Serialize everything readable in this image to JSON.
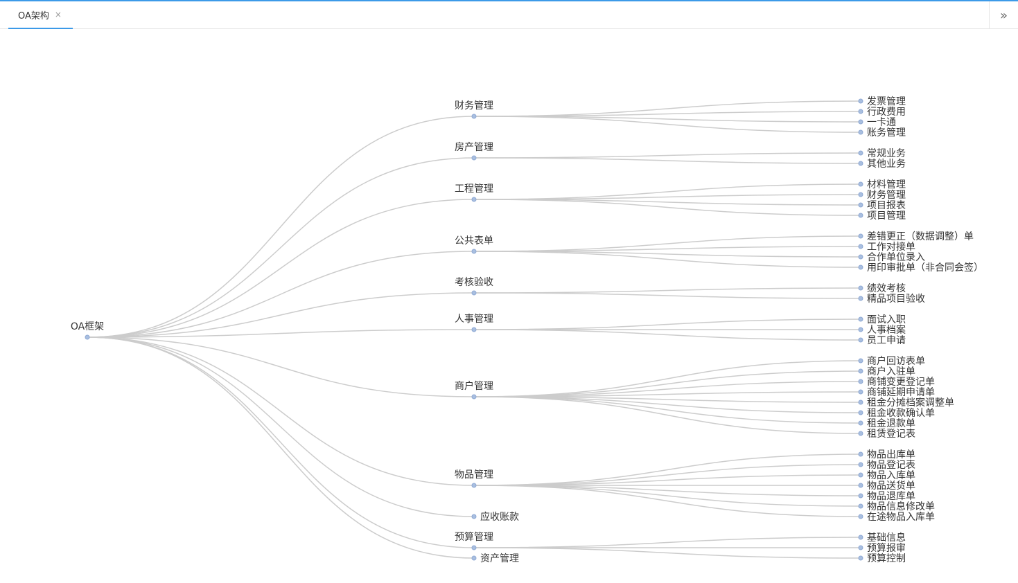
{
  "tabs": [
    {
      "label": "OA架构",
      "close": "×"
    }
  ],
  "toolbar": {
    "more_glyph": "»"
  },
  "tree": {
    "name": "OA框架",
    "children": [
      {
        "name": "财务管理",
        "children": [
          "发票管理",
          "行政费用",
          "一卡通",
          "账务管理"
        ]
      },
      {
        "name": "房产管理",
        "children": [
          "常规业务",
          "其他业务"
        ]
      },
      {
        "name": "工程管理",
        "children": [
          "材料管理",
          "财务管理",
          "项目报表",
          "项目管理"
        ]
      },
      {
        "name": "公共表单",
        "children": [
          "差错更正（数据调整）单",
          "工作对接单",
          "合作单位录入",
          "用印审批单（非合同会签）"
        ]
      },
      {
        "name": "考核验收",
        "children": [
          "绩效考核",
          "精品项目验收"
        ]
      },
      {
        "name": "人事管理",
        "children": [
          "面试入职",
          "人事档案",
          "员工申请"
        ]
      },
      {
        "name": "商户管理",
        "children": [
          "商户回访表单",
          "商户入驻单",
          "商铺变更登记单",
          "商铺延期申请单",
          "租金分摊档案调整单",
          "租金收款确认单",
          "租金退款单",
          "租赁登记表"
        ]
      },
      {
        "name": "物品管理",
        "children": [
          "物品出库单",
          "物品登记表",
          "物品入库单",
          "物品送货单",
          "物品退库单",
          "物品信息修改单",
          "在途物品入库单"
        ]
      },
      {
        "name": "应收账款",
        "children": []
      },
      {
        "name": "预算管理",
        "children": [
          "基础信息",
          "预算报审",
          "预算控制"
        ]
      },
      {
        "name": "资产管理",
        "children": []
      }
    ]
  }
}
